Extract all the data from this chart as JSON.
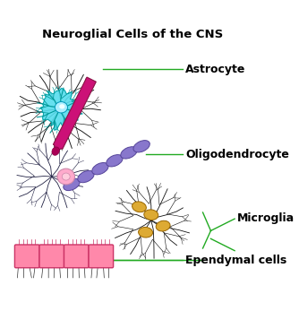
{
  "title": "Neuroglial Cells of the CNS",
  "title_fontsize": 9.5,
  "title_fontweight": "bold",
  "background_color": "#ffffff",
  "labels": {
    "astrocyte": "Astrocyte",
    "oligodendrocyte": "Oligodendrocyte",
    "microglia": "Microglia",
    "ependymal": "Ependymal cells"
  },
  "label_fontsize": 9,
  "line_color": "#22aa22",
  "astrocyte_body_color": "#55ddee",
  "astrocyte_nucleus_color": "#aaeeff",
  "astrocyte_dendrite_color": "#00bbbb",
  "astrocyte_outer_dendrite_color": "#111111",
  "axon_color": "#cc1177",
  "axon_edge_color": "#881144",
  "oligo_cell_color": "#ffaacc",
  "oligo_myelin_color": "#8877cc",
  "oligo_dendrite_color": "#334488",
  "microglia_color": "#ddaa33",
  "microglia_dendrite_color": "#111111",
  "ependymal_color": "#ff88aa",
  "ependymal_edge_color": "#cc3366"
}
